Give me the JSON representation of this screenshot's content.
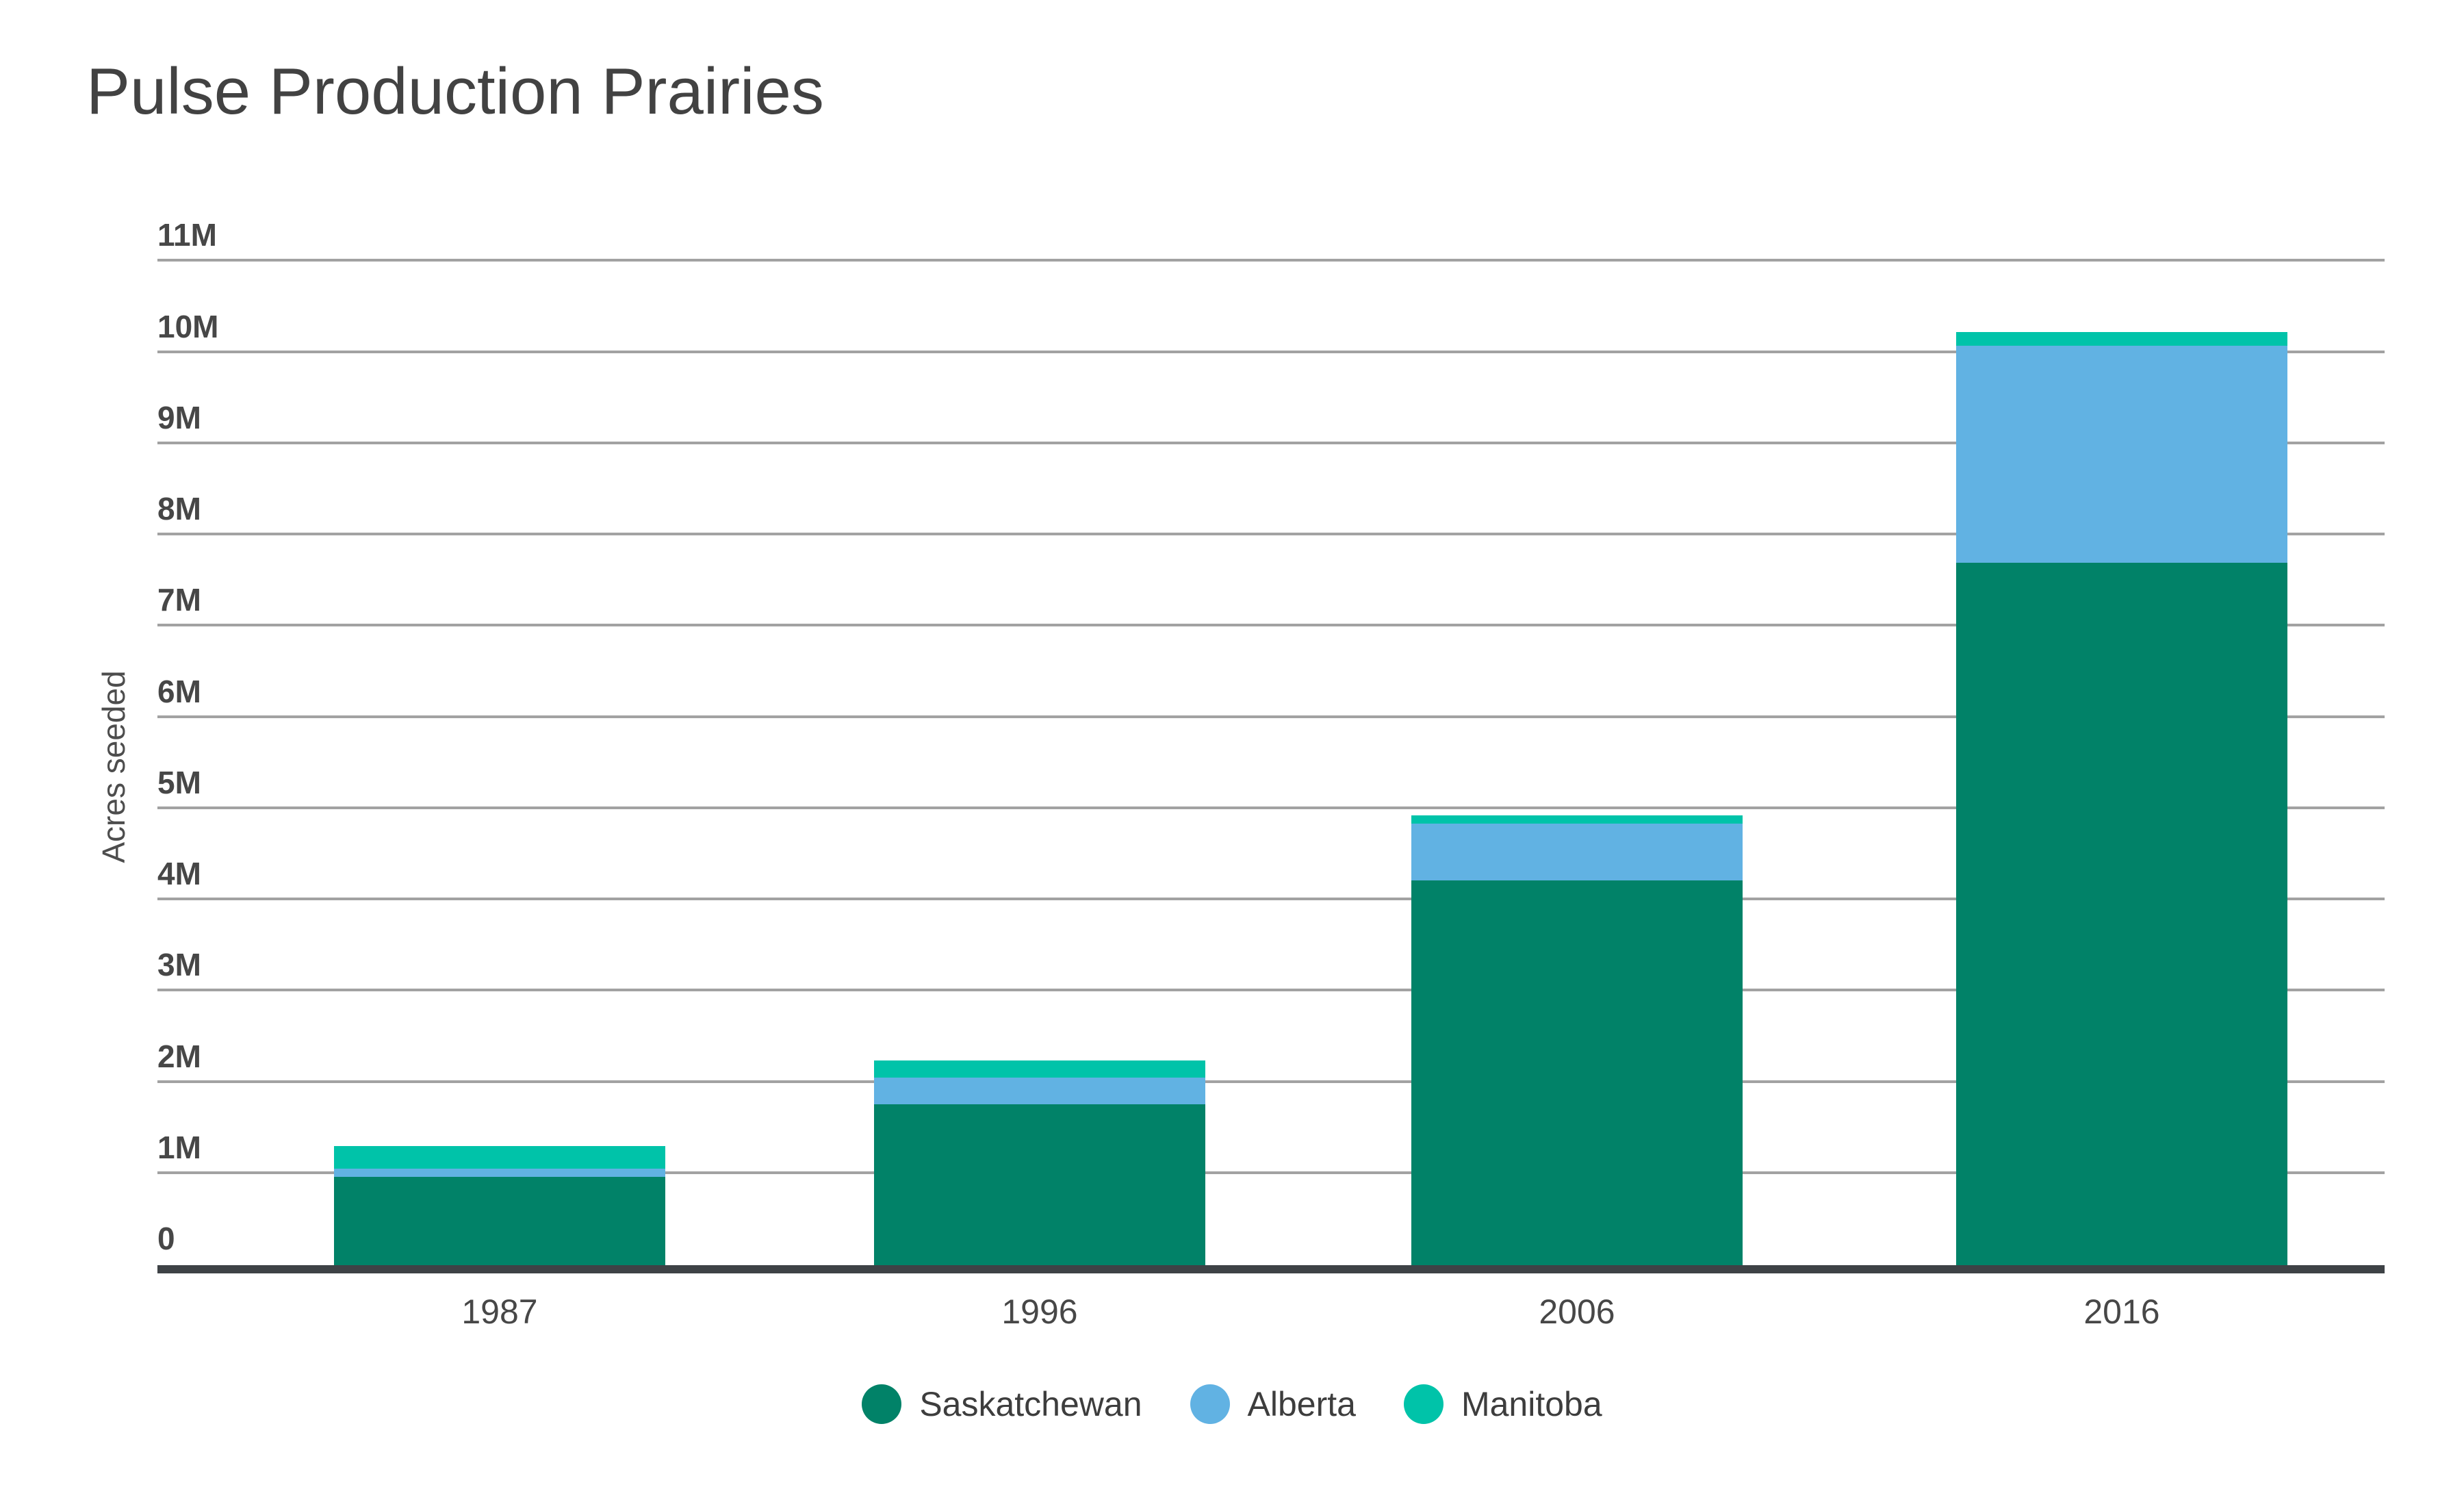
{
  "title": "Pulse Production Prairies",
  "y_axis": {
    "title": "Acres seeded"
  },
  "colors": {
    "saskatchewan": "#018268",
    "alberta": "#61B2E3",
    "manitoba": "#00C3A9",
    "gridline": "#A2A2A2",
    "axis_line": "#3E4246",
    "text": "#424242"
  },
  "chart_data": {
    "type": "bar",
    "stacked": true,
    "title": "Pulse Production Prairies",
    "ylabel": "Acres seeded",
    "xlabel": "",
    "unit": "millions of acres",
    "ylim": [
      0,
      11
    ],
    "yticks": [
      "0",
      "1M",
      "2M",
      "3M",
      "4M",
      "5M",
      "6M",
      "7M",
      "8M",
      "9M",
      "10M",
      "11M"
    ],
    "grid": "horizontal",
    "legend_position": "bottom",
    "categories": [
      "1987",
      "1996",
      "2006",
      "2016"
    ],
    "series": [
      {
        "name": "Saskatchewan",
        "color": "#018268",
        "values": [
          0.97,
          1.76,
          4.22,
          7.7
        ]
      },
      {
        "name": "Alberta",
        "color": "#61B2E3",
        "values": [
          0.09,
          0.29,
          0.62,
          2.38
        ]
      },
      {
        "name": "Manitoba",
        "color": "#00C3A9",
        "values": [
          0.25,
          0.19,
          0.09,
          0.15
        ]
      }
    ],
    "totals": [
      1.31,
      2.24,
      4.93,
      10.23
    ]
  }
}
